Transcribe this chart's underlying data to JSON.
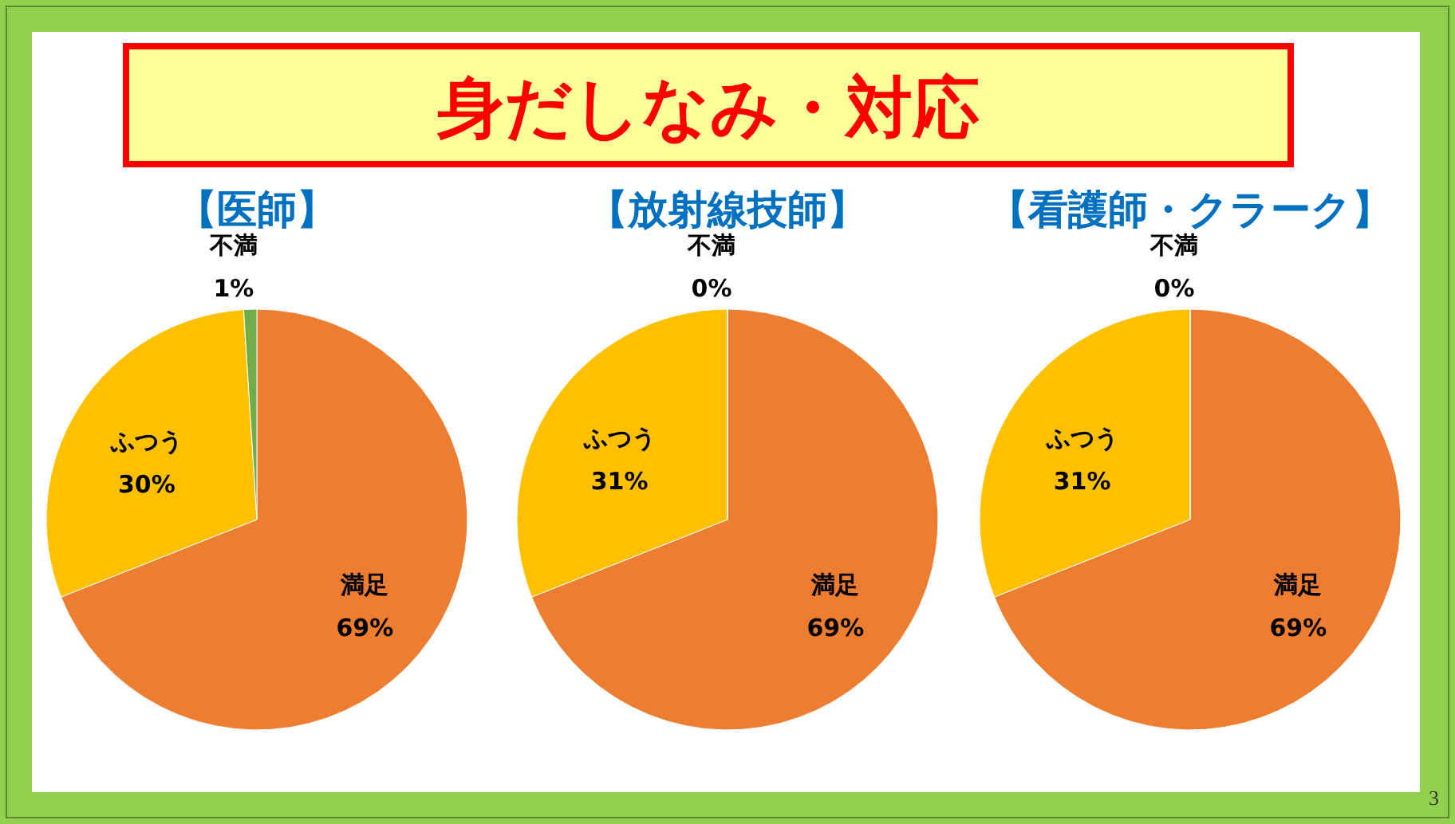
{
  "chart_data": [
    {
      "type": "other",
      "title": "身だしなみ・対応",
      "annotations": [
        "3"
      ]
    },
    {
      "type": "pie",
      "title": "【医師】",
      "categories": [
        "満足",
        "ふつう",
        "不満"
      ],
      "values": [
        69,
        30,
        1
      ],
      "colors": [
        "#ed7d31",
        "#ffc000",
        "#70ad47"
      ],
      "value_labels": [
        "69%",
        "30%",
        "1%"
      ],
      "legend": false
    },
    {
      "type": "pie",
      "title": "【放射線技師】",
      "categories": [
        "満足",
        "ふつう",
        "不満"
      ],
      "values": [
        69,
        31,
        0
      ],
      "colors": [
        "#ed7d31",
        "#ffc000",
        "#70ad47"
      ],
      "value_labels": [
        "69%",
        "31%",
        "0%"
      ],
      "legend": false
    },
    {
      "type": "pie",
      "title": "【看護師・クラーク】",
      "categories": [
        "満足",
        "ふつう",
        "不満"
      ],
      "values": [
        69,
        31,
        0
      ],
      "colors": [
        "#ed7d31",
        "#ffc000",
        "#70ad47"
      ],
      "value_labels": [
        "69%",
        "31%",
        "0%"
      ],
      "legend": false
    }
  ]
}
